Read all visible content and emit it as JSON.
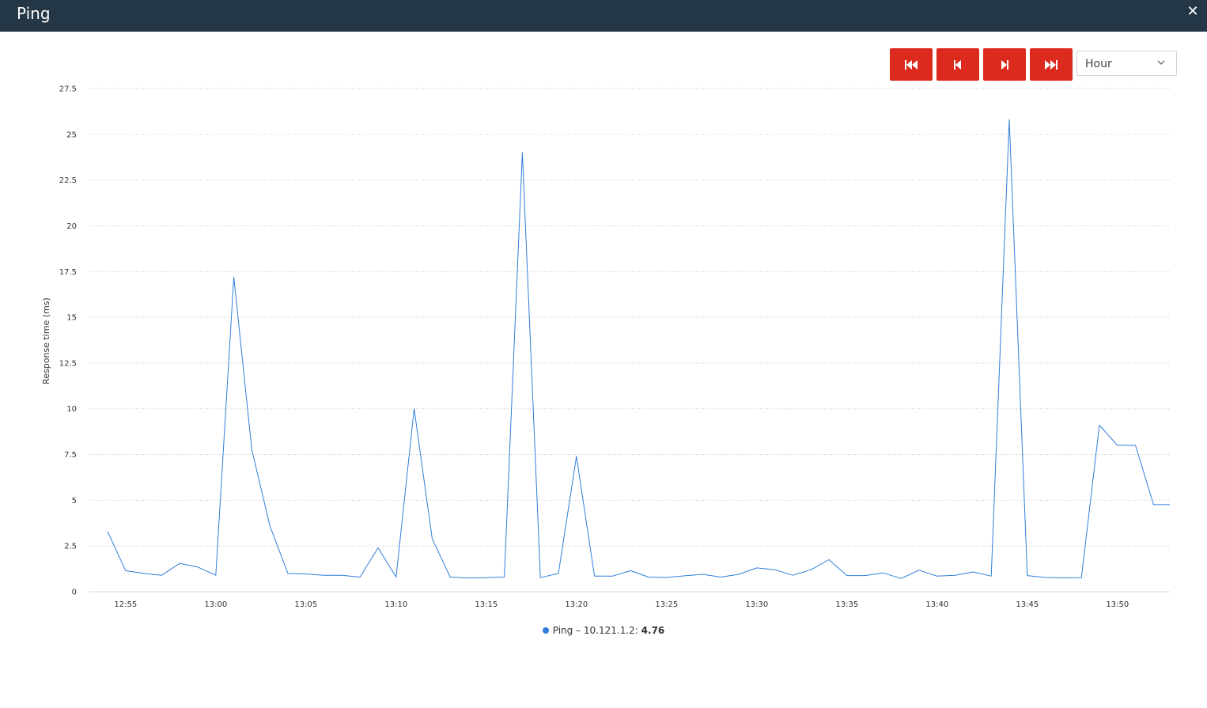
{
  "window": {
    "title": "Ping"
  },
  "toolbar": {
    "buttons": [
      {
        "name": "first-page-button",
        "icon": "skip-to-start-icon"
      },
      {
        "name": "previous-page-button",
        "icon": "step-backward-icon"
      },
      {
        "name": "next-page-button",
        "icon": "step-forward-icon"
      },
      {
        "name": "last-page-button",
        "icon": "skip-to-end-icon"
      }
    ],
    "range_select": {
      "value": "Hour"
    }
  },
  "colors": {
    "titlebar": "#243746",
    "button": "#dd2a1f",
    "series": "#2f7ed8",
    "grid": "#c8c8c8"
  },
  "legend": {
    "label": "Ping – 10.121.1.2:",
    "value": "4.76"
  },
  "chart_data": {
    "type": "line",
    "title": "",
    "ylabel": "Response time (ms)",
    "xlabel": "",
    "ylim": [
      0,
      27.5
    ],
    "yticks": [
      "0",
      "2.5",
      "5",
      "7.5",
      "10",
      "12.5",
      "15",
      "17.5",
      "20",
      "22.5",
      "25",
      "27.5"
    ],
    "xticks": [
      "12:55",
      "13:00",
      "13:05",
      "13:10",
      "13:15",
      "13:20",
      "13:25",
      "13:30",
      "13:35",
      "13:40",
      "13:45",
      "13:50"
    ],
    "grid": true,
    "legend_position": "bottom",
    "series": [
      {
        "name": "Ping – 10.121.1.2",
        "points": [
          [
            "12:54",
            3.3
          ],
          [
            "12:55",
            1.15
          ],
          [
            "12:56",
            1.0
          ],
          [
            "12:57",
            0.9
          ],
          [
            "12:58",
            1.55
          ],
          [
            "12:59",
            1.35
          ],
          [
            "13:00",
            0.9
          ],
          [
            "13:01",
            17.2
          ],
          [
            "13:02",
            7.75
          ],
          [
            "13:03",
            3.6
          ],
          [
            "13:04",
            1.0
          ],
          [
            "13:05",
            0.97
          ],
          [
            "13:06",
            0.9
          ],
          [
            "13:07",
            0.9
          ],
          [
            "13:08",
            0.8
          ],
          [
            "13:09",
            2.4
          ],
          [
            "13:10",
            0.8
          ],
          [
            "13:11",
            10.0
          ],
          [
            "13:12",
            2.9
          ],
          [
            "13:13",
            0.8
          ],
          [
            "13:14",
            0.75
          ],
          [
            "13:15",
            0.77
          ],
          [
            "13:16",
            0.8
          ],
          [
            "13:17",
            24.0
          ],
          [
            "13:18",
            0.77
          ],
          [
            "13:19",
            1.0
          ],
          [
            "13:20",
            7.4
          ],
          [
            "13:21",
            0.85
          ],
          [
            "13:22",
            0.85
          ],
          [
            "13:23",
            1.15
          ],
          [
            "13:24",
            0.8
          ],
          [
            "13:25",
            0.78
          ],
          [
            "13:26",
            0.87
          ],
          [
            "13:27",
            0.95
          ],
          [
            "13:28",
            0.8
          ],
          [
            "13:29",
            0.95
          ],
          [
            "13:30",
            1.3
          ],
          [
            "13:31",
            1.2
          ],
          [
            "13:32",
            0.9
          ],
          [
            "13:33",
            1.2
          ],
          [
            "13:34",
            1.75
          ],
          [
            "13:35",
            0.88
          ],
          [
            "13:36",
            0.88
          ],
          [
            "13:37",
            1.03
          ],
          [
            "13:38",
            0.72
          ],
          [
            "13:39",
            1.18
          ],
          [
            "13:40",
            0.85
          ],
          [
            "13:41",
            0.9
          ],
          [
            "13:42",
            1.08
          ],
          [
            "13:43",
            0.85
          ],
          [
            "13:44",
            25.8
          ],
          [
            "13:45",
            0.88
          ],
          [
            "13:46",
            0.78
          ],
          [
            "13:47",
            0.76
          ],
          [
            "13:48",
            0.77
          ],
          [
            "13:49",
            9.1
          ],
          [
            "13:50",
            8.0
          ],
          [
            "13:51",
            8.0
          ],
          [
            "13:52",
            4.76
          ],
          [
            "13:53",
            4.76
          ]
        ]
      }
    ]
  }
}
